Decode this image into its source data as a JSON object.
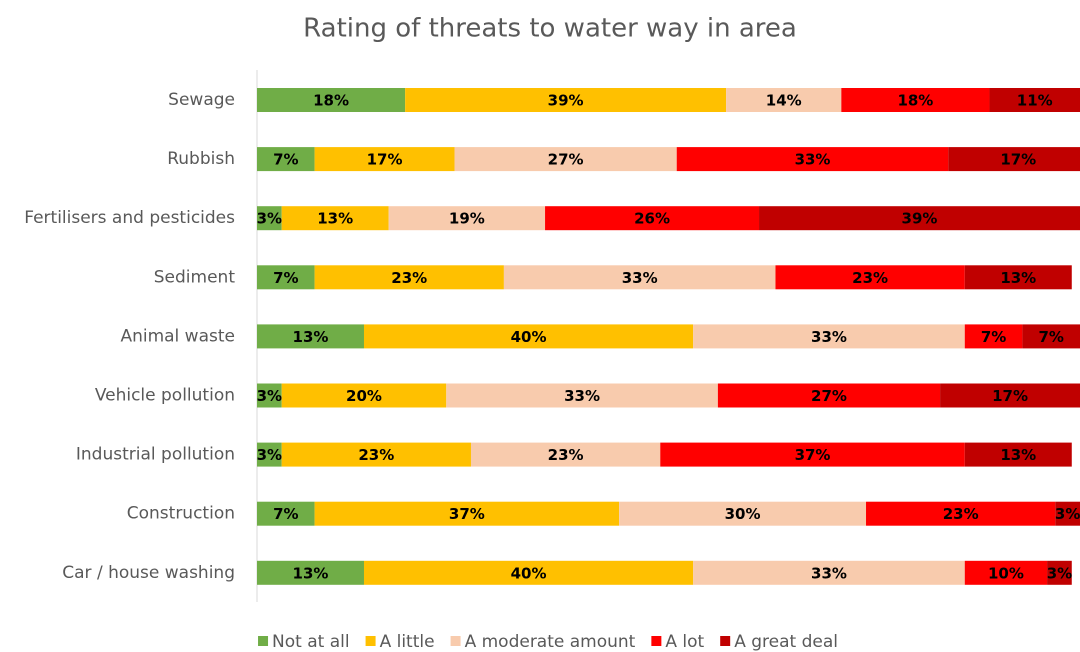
{
  "chart_data": {
    "type": "stacked-bar-horizontal",
    "title": "Rating of threats to water way in area",
    "categories": [
      "Sewage",
      "Rubbish",
      "Fertilisers and pesticides",
      "Sediment",
      "Animal waste",
      "Vehicle pollution",
      "Industrial pollution",
      "Construction",
      "Car / house washing"
    ],
    "xlim": [
      0,
      100
    ],
    "legend": "bottom",
    "series": [
      {
        "name": "Not at all",
        "color": "#70ad47",
        "values": [
          18,
          7,
          3,
          7,
          13,
          3,
          3,
          7,
          13
        ],
        "value_labels": [
          "18%",
          "7%",
          "3%",
          "7%",
          "13%",
          "3%",
          "3%",
          "7%",
          "13%"
        ]
      },
      {
        "name": "A little",
        "color": "#ffc000",
        "values": [
          39,
          17,
          13,
          23,
          40,
          20,
          23,
          37,
          40
        ],
        "value_labels": [
          "39%",
          "17%",
          "13%",
          "23%",
          "40%",
          "20%",
          "23%",
          "37%",
          "40%"
        ]
      },
      {
        "name": "A moderate amount",
        "color": "#f8cbad",
        "values": [
          14,
          27,
          19,
          33,
          33,
          33,
          23,
          30,
          33
        ],
        "value_labels": [
          "14%",
          "27%",
          "19%",
          "33%",
          "33%",
          "33%",
          "23%",
          "30%",
          "33%"
        ]
      },
      {
        "name": "A lot",
        "color": "#ff0000",
        "values": [
          18,
          33,
          26,
          23,
          7,
          27,
          37,
          23,
          10
        ],
        "value_labels": [
          "18%",
          "33%",
          "26%",
          "23%",
          "7%",
          "27%",
          "37%",
          "23%",
          "10%"
        ]
      },
      {
        "name": "A great deal",
        "color": "#c00000",
        "values": [
          11,
          17,
          39,
          13,
          7,
          17,
          13,
          3,
          3
        ],
        "value_labels": [
          "11%",
          "17%",
          "39%",
          "13%",
          "7%",
          "17%",
          "13%",
          "3%",
          "3%"
        ]
      }
    ]
  }
}
